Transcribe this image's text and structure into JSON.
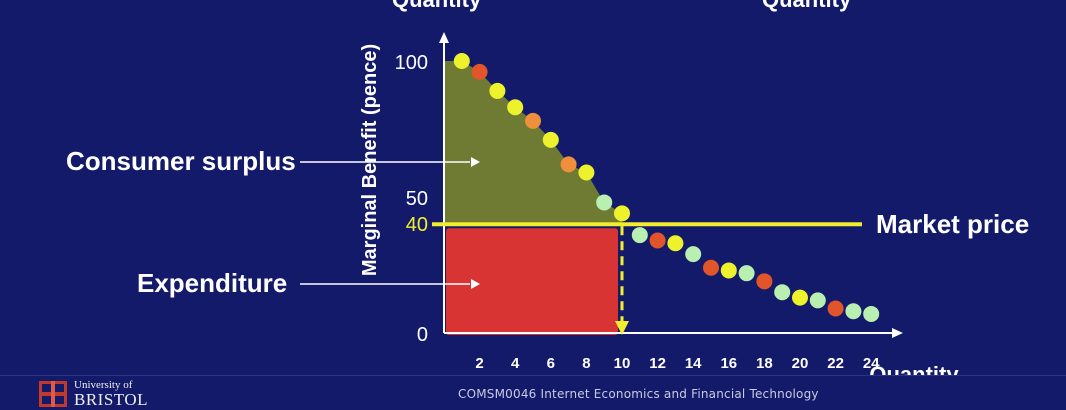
{
  "slide": {
    "top_left_cut_label": "Quantity",
    "top_right_cut_label": "Quantity",
    "footer_text": "COMSM0046 Internet Economics and Financial Technology",
    "logo": {
      "line1": "University of",
      "line2": "BRISTOL"
    }
  },
  "colors": {
    "background": "#131a6a",
    "surplus": "#6f7a33",
    "expenditure": "#d93434",
    "price_line": "#f2ee2c",
    "text": "#ffffff",
    "dot_yellow": "#eef22c",
    "dot_orange": "#ef8f3c",
    "dot_red": "#e2552a",
    "dot_green": "#b9f0b2"
  },
  "chart_data": {
    "type": "scatter",
    "ylabel": "Marginal Benefit (pence)",
    "xlabel": "Quantity",
    "xlim": [
      0,
      25
    ],
    "ylim": [
      0,
      100
    ],
    "x_ticks": [
      2,
      4,
      6,
      8,
      10,
      12,
      14,
      16,
      18,
      20,
      22,
      24
    ],
    "y_ticks": [
      0,
      50,
      100
    ],
    "price_tick": 40,
    "market_price": 40,
    "points": [
      {
        "x": 1,
        "y": 100,
        "c": "dot_yellow"
      },
      {
        "x": 2,
        "y": 96,
        "c": "dot_red"
      },
      {
        "x": 3,
        "y": 89,
        "c": "dot_yellow"
      },
      {
        "x": 4,
        "y": 83,
        "c": "dot_yellow"
      },
      {
        "x": 5,
        "y": 78,
        "c": "dot_orange"
      },
      {
        "x": 6,
        "y": 71,
        "c": "dot_yellow"
      },
      {
        "x": 7,
        "y": 62,
        "c": "dot_orange"
      },
      {
        "x": 8,
        "y": 59,
        "c": "dot_yellow"
      },
      {
        "x": 9,
        "y": 48,
        "c": "dot_green"
      },
      {
        "x": 10,
        "y": 44,
        "c": "dot_yellow"
      },
      {
        "x": 11,
        "y": 36,
        "c": "dot_green"
      },
      {
        "x": 12,
        "y": 34,
        "c": "dot_red"
      },
      {
        "x": 13,
        "y": 33,
        "c": "dot_yellow"
      },
      {
        "x": 14,
        "y": 29,
        "c": "dot_green"
      },
      {
        "x": 15,
        "y": 24,
        "c": "dot_red"
      },
      {
        "x": 16,
        "y": 23,
        "c": "dot_yellow"
      },
      {
        "x": 17,
        "y": 22,
        "c": "dot_green"
      },
      {
        "x": 18,
        "y": 19,
        "c": "dot_red"
      },
      {
        "x": 19,
        "y": 15,
        "c": "dot_green"
      },
      {
        "x": 20,
        "y": 13,
        "c": "dot_yellow"
      },
      {
        "x": 21,
        "y": 12,
        "c": "dot_green"
      },
      {
        "x": 22,
        "y": 9,
        "c": "dot_red"
      },
      {
        "x": 23,
        "y": 8,
        "c": "dot_green"
      },
      {
        "x": 24,
        "y": 7,
        "c": "dot_green"
      }
    ],
    "consumer_surplus": {
      "label": "Consumer surplus"
    },
    "expenditure": {
      "label": "Expenditure",
      "quantity": 10
    },
    "market_price_label": "Market price"
  }
}
